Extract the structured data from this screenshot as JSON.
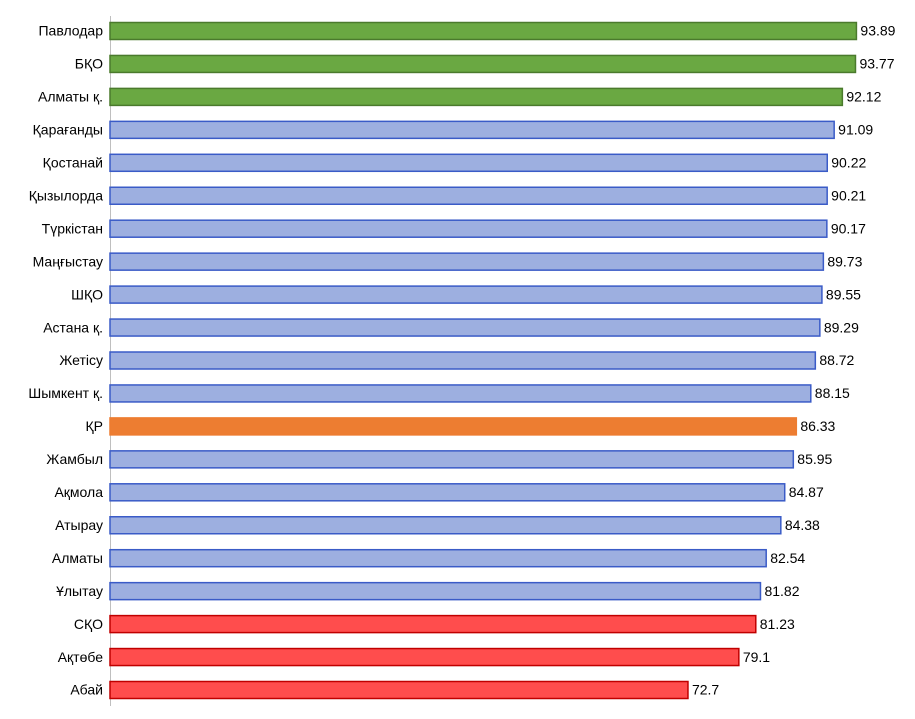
{
  "chart_data": {
    "type": "barh",
    "categories": [
      "Павлодар",
      "БҚО",
      "Алматы қ.",
      "Қарағанды",
      "Қостанай",
      "Қызылорда",
      "Түркістан",
      "Маңғыстау",
      "ШҚО",
      "Астана қ.",
      "Жетісу",
      "Шымкент қ.",
      "ҚР",
      "Жамбыл",
      "Ақмола",
      "Атырау",
      "Алматы",
      "Ұлытау",
      "СҚО",
      "Ақтөбе",
      "Абай"
    ],
    "values": [
      93.89,
      93.77,
      92.12,
      91.09,
      90.22,
      90.21,
      90.17,
      89.73,
      89.55,
      89.29,
      88.72,
      88.15,
      86.33,
      85.95,
      84.87,
      84.38,
      82.54,
      81.82,
      81.23,
      79.1,
      72.7
    ],
    "colors": [
      "#6aa842",
      "#6aa842",
      "#6aa842",
      "#9dafe0",
      "#9dafe0",
      "#9dafe0",
      "#9dafe0",
      "#9dafe0",
      "#9dafe0",
      "#9dafe0",
      "#9dafe0",
      "#9dafe0",
      "#ed7d31",
      "#9dafe0",
      "#9dafe0",
      "#9dafe0",
      "#9dafe0",
      "#9dafe0",
      "#ff4d4d",
      "#ff4d4d",
      "#ff4d4d"
    ],
    "edgecolors": [
      "#4a7a2c",
      "#4a7a2c",
      "#4a7a2c",
      "#3a5bc7",
      "#3a5bc7",
      "#3a5bc7",
      "#3a5bc7",
      "#3a5bc7",
      "#3a5bc7",
      "#3a5bc7",
      "#3a5bc7",
      "#3a5bc7",
      "#ed7d31",
      "#3a5bc7",
      "#3a5bc7",
      "#3a5bc7",
      "#3a5bc7",
      "#3a5bc7",
      "#c00000",
      "#c00000",
      "#c00000"
    ],
    "xlim": [
      0,
      100
    ]
  }
}
